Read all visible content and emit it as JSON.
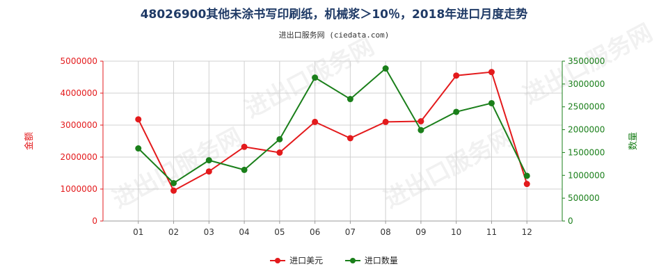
{
  "title": "48026900其他未涂书写印刷纸，机械浆＞10％，2018年进口月度走势",
  "subtitle": "进出口服务网 (ciedata.com)",
  "watermark_text": "进出口服务网",
  "colors": {
    "value": "#e31a1c",
    "quantity": "#1a7f1a",
    "grid": "#d0d0d0",
    "axis": "#999999"
  },
  "chart_data": {
    "type": "line",
    "categories": [
      "01",
      "02",
      "03",
      "04",
      "05",
      "06",
      "07",
      "08",
      "09",
      "10",
      "11",
      "12"
    ],
    "y_left": {
      "label": "金额",
      "ylim": [
        0,
        5000000
      ],
      "ticks": [
        0,
        1000000,
        2000000,
        3000000,
        4000000,
        5000000
      ],
      "tick_labels": [
        "0",
        "1000000",
        "2000000",
        "3000000",
        "4000000",
        "5000000"
      ]
    },
    "y_right": {
      "label": "数量",
      "ylim": [
        0,
        3500000
      ],
      "ticks": [
        0,
        500000,
        1000000,
        1500000,
        2000000,
        2500000,
        3000000,
        3500000
      ],
      "tick_labels": [
        "0",
        "500000",
        "1000000",
        "1500000",
        "2000000",
        "2500000",
        "3000000",
        "3500000"
      ]
    },
    "series": [
      {
        "name": "进口美元",
        "axis": "left",
        "color": "#e31a1c",
        "values": [
          3180000,
          950000,
          1550000,
          2320000,
          2140000,
          3100000,
          2590000,
          3100000,
          3120000,
          4550000,
          4660000,
          1160000
        ]
      },
      {
        "name": "进口数量",
        "axis": "right",
        "color": "#1a7f1a",
        "values": [
          1590000,
          830000,
          1330000,
          1120000,
          1790000,
          3140000,
          2670000,
          3340000,
          1990000,
          2390000,
          2580000,
          990000
        ]
      }
    ],
    "grid": true,
    "legend": "bottom-center"
  }
}
